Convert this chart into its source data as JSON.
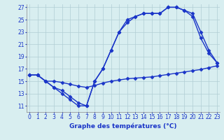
{
  "title": "Graphe des températures (°C)",
  "bg_color": "#d8eef0",
  "grid_color": "#b0cdd4",
  "line_color": "#1a35c8",
  "marker": "D",
  "markersize": 2.5,
  "linewidth": 1.0,
  "xlim": [
    -0.3,
    23.3
  ],
  "ylim": [
    10.0,
    27.5
  ],
  "xticks": [
    0,
    1,
    2,
    3,
    4,
    5,
    6,
    7,
    8,
    9,
    10,
    11,
    12,
    13,
    14,
    15,
    16,
    17,
    18,
    19,
    20,
    21,
    22,
    23
  ],
  "yticks": [
    11,
    13,
    15,
    17,
    19,
    21,
    23,
    25,
    27
  ],
  "xlabel_fontsize": 6.5,
  "tick_fontsize": 5.5,
  "series1_x": [
    0,
    1,
    2,
    3,
    4,
    5,
    6,
    7,
    8,
    9,
    10,
    11,
    12,
    13,
    14,
    15,
    16,
    17,
    18,
    19,
    20,
    21,
    22,
    23
  ],
  "series1_y": [
    16,
    16,
    15,
    14,
    13,
    12,
    11,
    11,
    15,
    17,
    20,
    23,
    25,
    25.5,
    26,
    26,
    26,
    27,
    27,
    26.5,
    26,
    23,
    20,
    18
  ],
  "series2_x": [
    0,
    1,
    2,
    3,
    4,
    5,
    6,
    7,
    8,
    9,
    10,
    11,
    12,
    13,
    14,
    15,
    16,
    17,
    18,
    19,
    20,
    21,
    22,
    23
  ],
  "series2_y": [
    16,
    16,
    15,
    14,
    13.5,
    12.5,
    11.5,
    11,
    15,
    17,
    20,
    23,
    24.5,
    25.5,
    26,
    26,
    26,
    27,
    27,
    26.5,
    25.5,
    22,
    19.5,
    18
  ],
  "series3_x": [
    0,
    1,
    2,
    3,
    4,
    5,
    6,
    7,
    8,
    9,
    10,
    11,
    12,
    13,
    14,
    15,
    16,
    17,
    18,
    19,
    20,
    21,
    22,
    23
  ],
  "series3_y": [
    16,
    16,
    15,
    15,
    14.8,
    14.5,
    14.2,
    14,
    14.3,
    14.7,
    15,
    15.2,
    15.4,
    15.5,
    15.6,
    15.7,
    15.9,
    16.1,
    16.3,
    16.5,
    16.7,
    16.9,
    17.2,
    17.5
  ]
}
